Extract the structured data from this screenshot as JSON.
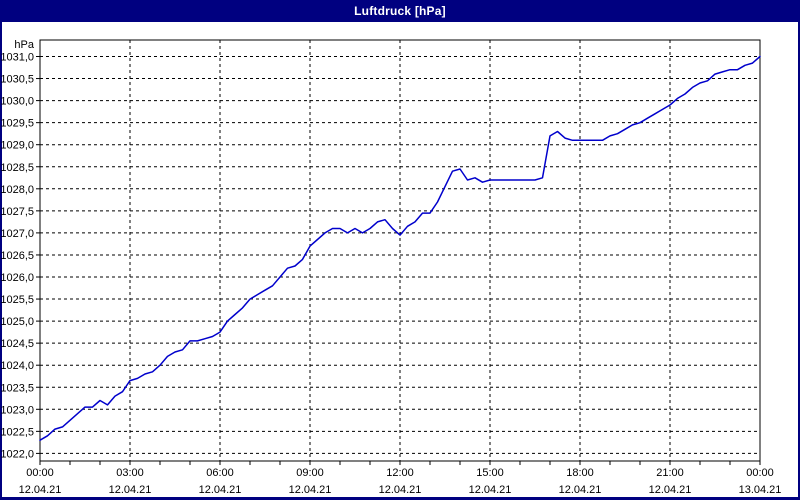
{
  "window": {
    "title": "Luftdruck [hPa]"
  },
  "colors": {
    "titlebar_bg": "#000080",
    "titlebar_text": "#ffffff",
    "window_border": "#000080",
    "plot_bg": "#ffffff",
    "grid": "#000000",
    "axis": "#000000",
    "line": "#0000cc",
    "label": "#000000"
  },
  "chart_data": {
    "type": "line",
    "title": "Luftdruck [hPa]",
    "ylabel": "hPa",
    "xlabel": "",
    "grid": true,
    "legend": "none",
    "y_axis": {
      "min": 1022.0,
      "max": 1031.0,
      "step": 0.5,
      "unit": "hPa",
      "tick_labels_top_to_bottom": [
        "1031,0",
        "1030,5",
        "1030,0",
        "1029,5",
        "1029,0",
        "1028,5",
        "1028,0",
        "1027,5",
        "1027,0",
        "1026,5",
        "1026,0",
        "1025,5",
        "1025,0",
        "1024,5",
        "1024,0",
        "1023,5",
        "1023,0",
        "1022,5",
        "1022,0"
      ]
    },
    "x_axis": {
      "range_hours": [
        0,
        24
      ],
      "major_tick_interval_hours": 3,
      "minor_tick_interval_hours": 1,
      "ticks": [
        {
          "hour": 0,
          "time": "00:00",
          "date": "12.04.21"
        },
        {
          "hour": 3,
          "time": "03:00",
          "date": "12.04.21"
        },
        {
          "hour": 6,
          "time": "06:00",
          "date": "12.04.21"
        },
        {
          "hour": 9,
          "time": "09:00",
          "date": "12.04.21"
        },
        {
          "hour": 12,
          "time": "12:00",
          "date": "12.04.21"
        },
        {
          "hour": 15,
          "time": "15:00",
          "date": "12.04.21"
        },
        {
          "hour": 18,
          "time": "18:00",
          "date": "12.04.21"
        },
        {
          "hour": 21,
          "time": "21:00",
          "date": "12.04.21"
        },
        {
          "hour": 24,
          "time": "00:00",
          "date": "13.04.21"
        }
      ]
    },
    "series": [
      {
        "name": "Luftdruck",
        "color": "#0000cc",
        "x_start_hour": 0,
        "x_step_hours": 0.25,
        "values": [
          1022.3,
          1022.4,
          1022.55,
          1022.6,
          1022.75,
          1022.9,
          1023.05,
          1023.05,
          1023.2,
          1023.1,
          1023.3,
          1023.4,
          1023.65,
          1023.7,
          1023.8,
          1023.85,
          1024.0,
          1024.2,
          1024.3,
          1024.35,
          1024.55,
          1024.55,
          1024.6,
          1024.65,
          1024.75,
          1025.0,
          1025.15,
          1025.3,
          1025.5,
          1025.6,
          1025.7,
          1025.8,
          1026.0,
          1026.2,
          1026.25,
          1026.4,
          1026.7,
          1026.85,
          1027.0,
          1027.1,
          1027.1,
          1027.0,
          1027.1,
          1027.0,
          1027.1,
          1027.25,
          1027.3,
          1027.1,
          1026.95,
          1027.15,
          1027.25,
          1027.45,
          1027.45,
          1027.7,
          1028.05,
          1028.4,
          1028.45,
          1028.2,
          1028.25,
          1028.15,
          1028.2,
          1028.2,
          1028.2,
          1028.2,
          1028.2,
          1028.2,
          1028.2,
          1028.25,
          1029.2,
          1029.3,
          1029.15,
          1029.1,
          1029.1,
          1029.1,
          1029.1,
          1029.1,
          1029.2,
          1029.25,
          1029.35,
          1029.45,
          1029.5,
          1029.6,
          1029.7,
          1029.8,
          1029.9,
          1030.05,
          1030.15,
          1030.3,
          1030.4,
          1030.45,
          1030.6,
          1030.65,
          1030.7,
          1030.7,
          1030.8,
          1030.85,
          1031.0
        ]
      }
    ]
  }
}
